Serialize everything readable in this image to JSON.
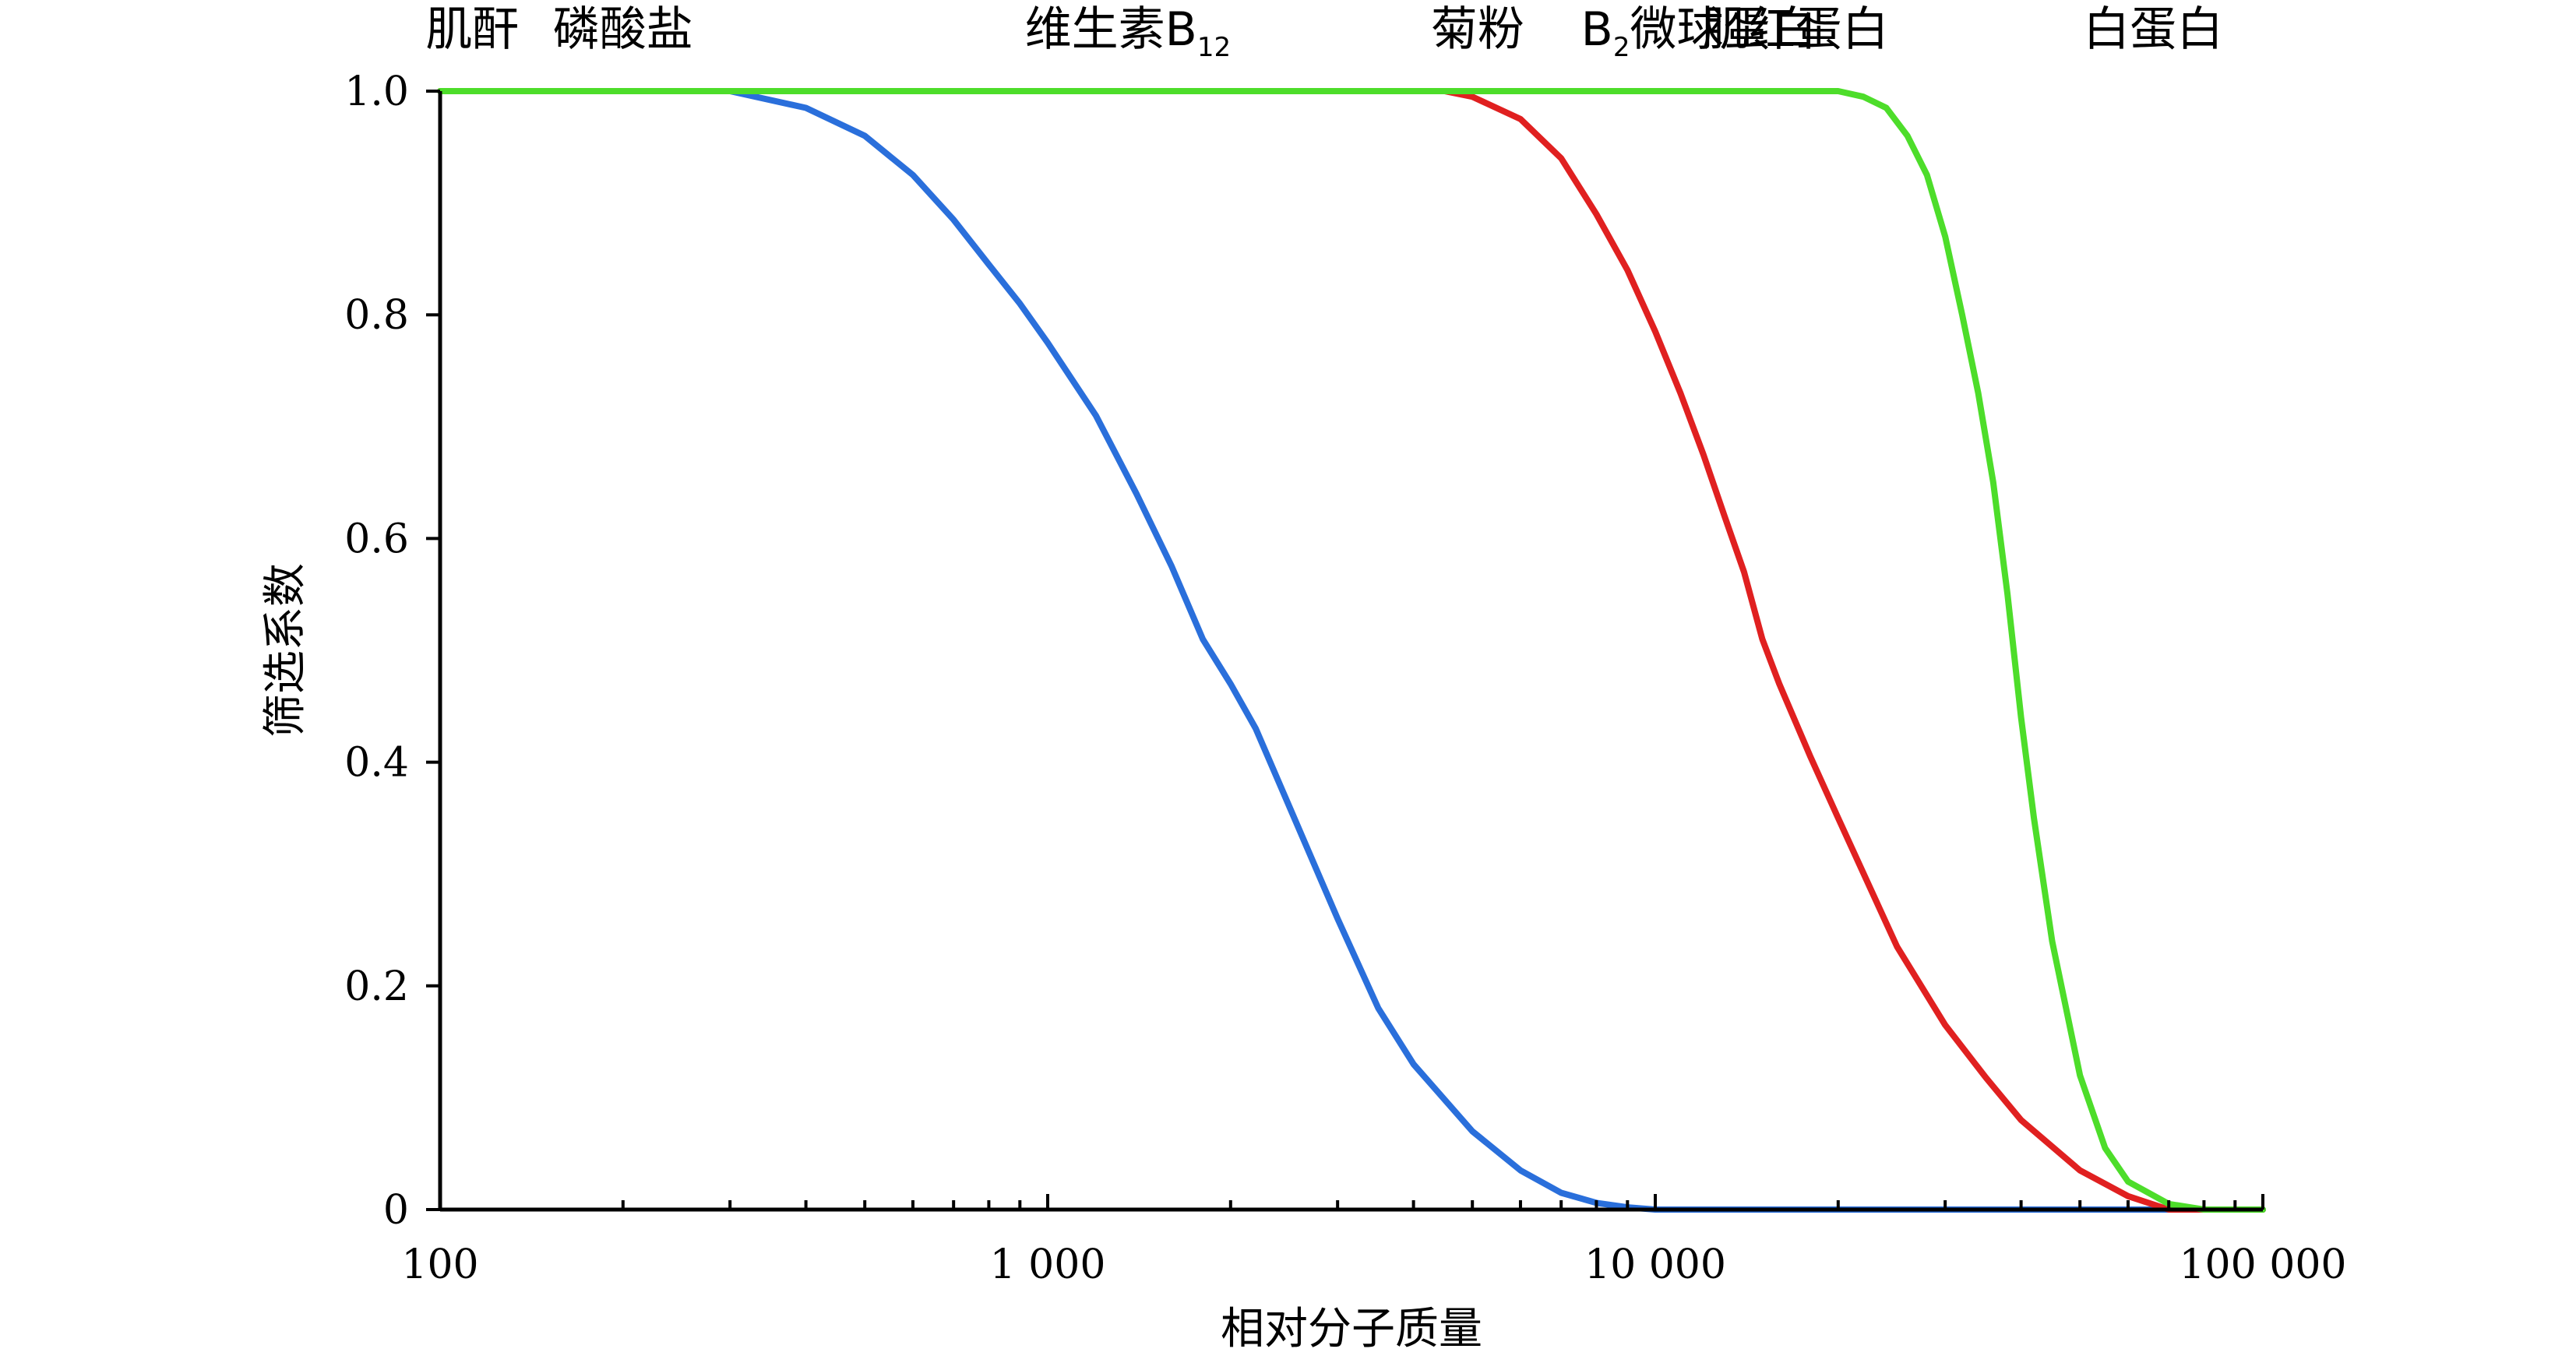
{
  "chart_data": {
    "type": "line",
    "title": "",
    "xlabel": "相对分子质量",
    "ylabel": "筛选系数",
    "xscale": "log",
    "xlim": [
      100,
      100000
    ],
    "ylim": [
      0,
      1.0
    ],
    "grid": false,
    "legend": "none",
    "x_ticks": [
      {
        "value": 100,
        "label": "100"
      },
      {
        "value": 1000,
        "label": "1 000"
      },
      {
        "value": 10000,
        "label": "10 000"
      },
      {
        "value": 100000,
        "label": "100 000"
      }
    ],
    "y_ticks": [
      {
        "value": 0,
        "label": "0"
      },
      {
        "value": 0.2,
        "label": "0.2"
      },
      {
        "value": 0.4,
        "label": "0.4"
      },
      {
        "value": 0.6,
        "label": "0.6"
      },
      {
        "value": 0.8,
        "label": "0.8"
      },
      {
        "value": 1.0,
        "label": "1.0"
      }
    ],
    "top_labels": [
      {
        "x": 113,
        "text": "肌酐",
        "sub": ""
      },
      {
        "x": 200,
        "text": "磷酸盐",
        "sub": ""
      },
      {
        "x": 1355,
        "text": "维生素B",
        "sub": "12"
      },
      {
        "x": 5100,
        "text": "菊粉",
        "sub": ""
      },
      {
        "x": 11800,
        "text": "B",
        "sub": "2",
        "tail": "微球蛋白"
      },
      {
        "x": 17000,
        "text": "肌红蛋白",
        "sub": ""
      },
      {
        "x": 66000,
        "text": "白蛋白",
        "sub": ""
      }
    ],
    "series": [
      {
        "color": "#2a6fdb",
        "points": [
          [
            100,
            1.0
          ],
          [
            300,
            1.0
          ],
          [
            400,
            0.985
          ],
          [
            500,
            0.96
          ],
          [
            600,
            0.925
          ],
          [
            700,
            0.885
          ],
          [
            800,
            0.845
          ],
          [
            900,
            0.81
          ],
          [
            1000,
            0.775
          ],
          [
            1200,
            0.71
          ],
          [
            1400,
            0.64
          ],
          [
            1600,
            0.575
          ],
          [
            1800,
            0.51
          ],
          [
            2000,
            0.47
          ],
          [
            2200,
            0.43
          ],
          [
            2500,
            0.36
          ],
          [
            3000,
            0.26
          ],
          [
            3500,
            0.18
          ],
          [
            4000,
            0.13
          ],
          [
            5000,
            0.07
          ],
          [
            6000,
            0.035
          ],
          [
            7000,
            0.015
          ],
          [
            8000,
            0.006
          ],
          [
            9000,
            0.002
          ],
          [
            10000,
            0.0
          ],
          [
            100000,
            0.0
          ]
        ]
      },
      {
        "color": "#e02020",
        "points": [
          [
            100,
            1.0
          ],
          [
            4500,
            1.0
          ],
          [
            5000,
            0.995
          ],
          [
            6000,
            0.975
          ],
          [
            7000,
            0.94
          ],
          [
            8000,
            0.89
          ],
          [
            9000,
            0.84
          ],
          [
            10000,
            0.785
          ],
          [
            11000,
            0.73
          ],
          [
            12000,
            0.675
          ],
          [
            13000,
            0.62
          ],
          [
            14000,
            0.57
          ],
          [
            15000,
            0.51
          ],
          [
            16000,
            0.47
          ],
          [
            18000,
            0.405
          ],
          [
            20000,
            0.35
          ],
          [
            25000,
            0.235
          ],
          [
            30000,
            0.165
          ],
          [
            35000,
            0.118
          ],
          [
            40000,
            0.08
          ],
          [
            50000,
            0.035
          ],
          [
            60000,
            0.012
          ],
          [
            70000,
            0.0
          ],
          [
            100000,
            0.0
          ]
        ]
      },
      {
        "color": "#4ddd2a",
        "points": [
          [
            100,
            1.0
          ],
          [
            20000,
            1.0
          ],
          [
            22000,
            0.995
          ],
          [
            24000,
            0.985
          ],
          [
            26000,
            0.96
          ],
          [
            28000,
            0.925
          ],
          [
            30000,
            0.87
          ],
          [
            32000,
            0.8
          ],
          [
            34000,
            0.73
          ],
          [
            36000,
            0.65
          ],
          [
            38000,
            0.55
          ],
          [
            40000,
            0.44
          ],
          [
            42000,
            0.35
          ],
          [
            45000,
            0.24
          ],
          [
            50000,
            0.12
          ],
          [
            55000,
            0.055
          ],
          [
            60000,
            0.025
          ],
          [
            70000,
            0.005
          ],
          [
            80000,
            0.0
          ],
          [
            100000,
            0.0
          ]
        ]
      }
    ]
  }
}
